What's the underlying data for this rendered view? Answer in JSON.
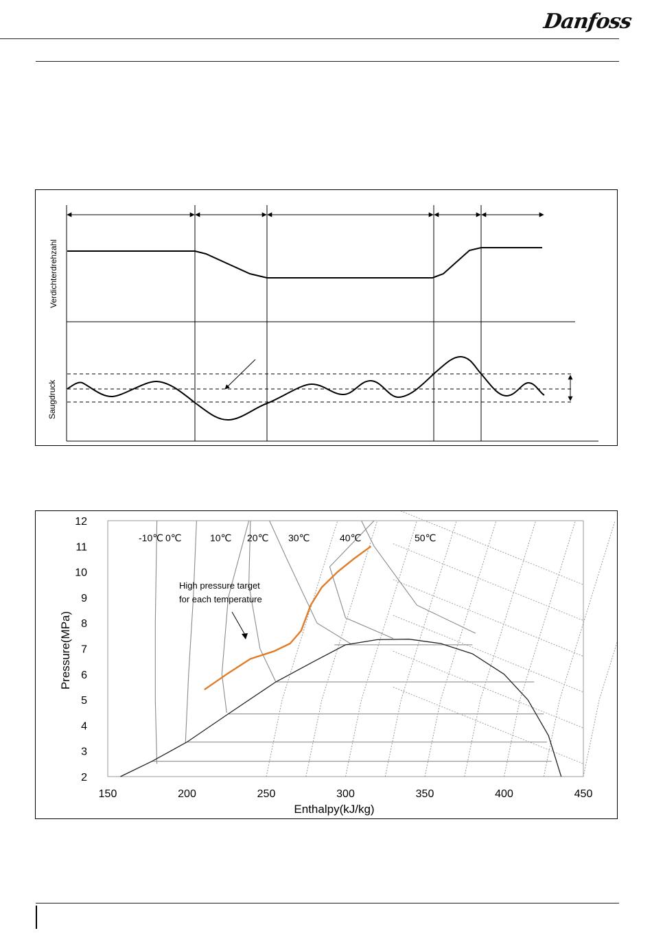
{
  "header": {
    "brand": "Danfoss"
  },
  "figure1": {
    "y_labels": {
      "top": "Verdichterdrehzahl",
      "bottom": "Saugdruck"
    }
  },
  "chart_data": [
    {
      "type": "line",
      "title": "",
      "series": [
        {
          "name": "Verdichterdrehzahl",
          "values": [
            1,
            1,
            0,
            0,
            1,
            1
          ]
        },
        {
          "name": "Saugdruck",
          "values": [
            0,
            0,
            -1,
            0,
            1,
            0
          ]
        }
      ],
      "xlabel": "",
      "ylabel": ""
    },
    {
      "type": "line",
      "title": "",
      "xlabel": "Enthalpy(kJ/kg)",
      "ylabel": "Pressure(MPa)",
      "xlim": [
        150,
        450
      ],
      "ylim": [
        2,
        12
      ],
      "x_ticks": [
        "150",
        "200",
        "250",
        "300",
        "350",
        "400",
        "450"
      ],
      "y_ticks": [
        "2",
        "3",
        "4",
        "5",
        "6",
        "7",
        "8",
        "9",
        "10",
        "11",
        "12"
      ],
      "isotherm_labels": [
        "-10℃",
        "0℃",
        "10℃",
        "20℃",
        "30℃",
        "40℃",
        "50℃"
      ],
      "annotation": [
        "High pressure target",
        "for each temperature"
      ],
      "series": [
        {
          "name": "",
          "color": "#e07b28",
          "x": [
            211,
            225,
            240,
            255,
            265,
            272,
            278,
            285,
            295,
            305,
            316
          ],
          "y": [
            5.4,
            6.0,
            6.6,
            6.9,
            7.2,
            7.7,
            8.7,
            9.4,
            10.0,
            10.5,
            11.0
          ]
        }
      ]
    }
  ]
}
